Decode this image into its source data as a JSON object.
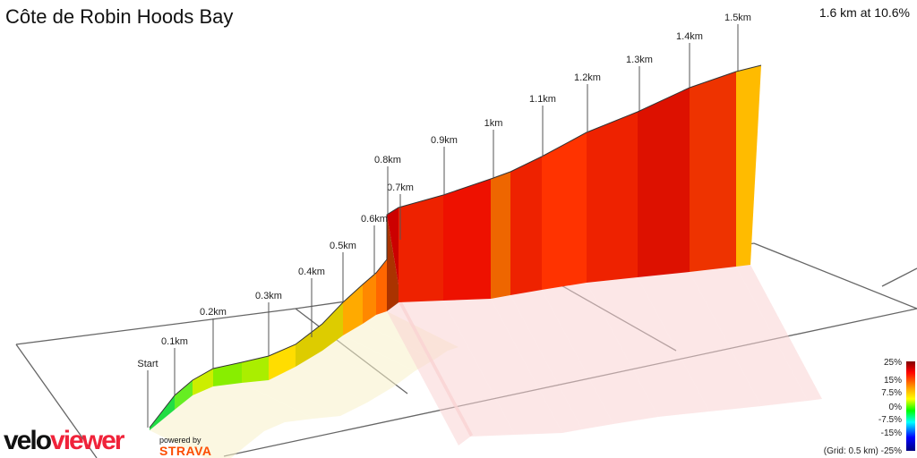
{
  "title": "Côte de Robin Hoods Bay",
  "summary": "1.6 km at 10.6%",
  "logo": {
    "velo": "velo",
    "viewer": "viewer",
    "powered": "powered by",
    "strava": "STRAVA"
  },
  "chart_data": {
    "type": "area",
    "style": "3d-elevation-profile",
    "distance_markers": [
      "Start",
      "0.1km",
      "0.2km",
      "0.3km",
      "0.4km",
      "0.5km",
      "0.6km",
      "0.7km",
      "0.8km",
      "0.9km",
      "1km",
      "1.1km",
      "1.2km",
      "1.3km",
      "1.4km",
      "1.5km"
    ],
    "legend": {
      "title": "(Grid: 0.5 km)",
      "ticks": [
        "25%",
        "15%",
        "7.5%",
        "0%",
        "-7.5%",
        "-15%",
        "-25%"
      ],
      "colors": [
        "#800000",
        "#ff0000",
        "#ffa500",
        "#ffff00",
        "#00ff00",
        "#00ffff",
        "#0000ff",
        "#000080"
      ]
    },
    "grid_km": 0.5,
    "total_distance_km": 1.6,
    "avg_gradient_pct": 10.6
  }
}
